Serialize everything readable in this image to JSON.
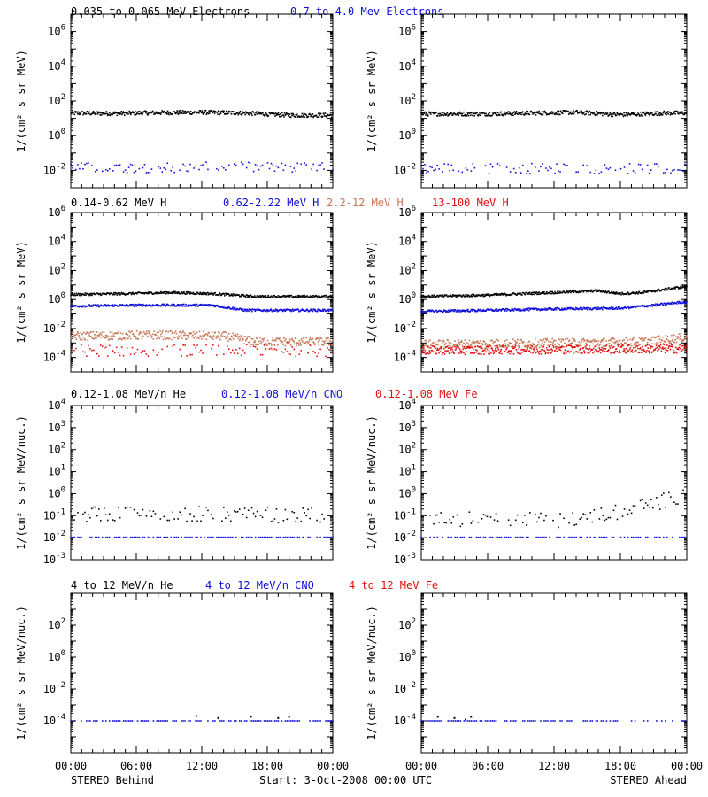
{
  "colors": {
    "black": "#000000",
    "blue": "#1010d8",
    "salmon": "#c87858",
    "red": "#e01010"
  },
  "rows": [
    {
      "legend": [
        {
          "text": "0.035 to 0.065 MeV Electrons",
          "color": "#000000"
        },
        {
          "text": "0.7 to 4.0 Mev Electrons",
          "color": "#1010d8"
        }
      ]
    },
    {
      "legend": [
        {
          "text": "0.14-0.62 MeV H",
          "color": "#000000"
        },
        {
          "text": "0.62-2.22 MeV H",
          "color": "#1010d8"
        },
        {
          "text": "2.2-12 MeV H",
          "color": "#c87858"
        },
        {
          "text": "13-100 MeV H",
          "color": "#e01010"
        }
      ]
    },
    {
      "legend": [
        {
          "text": "0.12-1.08 MeV/n He",
          "color": "#000000"
        },
        {
          "text": "0.12-1.08 MeV/n CNO",
          "color": "#1010d8"
        },
        {
          "text": "0.12-1.08 MeV Fe",
          "color": "#e01010"
        }
      ]
    },
    {
      "legend": [
        {
          "text": "4 to 12 MeV/n He",
          "color": "#000000"
        },
        {
          "text": "4 to 12 MeV/n CNO",
          "color": "#1010d8"
        },
        {
          "text": "4 to 12 MeV Fe",
          "color": "#e01010"
        }
      ]
    }
  ],
  "footer": {
    "left": "STEREO Behind",
    "center": "Start:  3-Oct-2008 00:00 UTC",
    "right": "STEREO Ahead"
  },
  "chart_data": [
    {
      "type": "scatter",
      "panel": "electrons-behind",
      "ylabel": "1/(cm² s sr MeV)",
      "log_y": true,
      "ylim_exp": [
        -3,
        7
      ],
      "yticks": [
        -2,
        0,
        2,
        4,
        6
      ],
      "xticks": [
        "00:00",
        "06:00",
        "12:00",
        "18:00",
        "00:00"
      ],
      "series": [
        {
          "color": "#000000",
          "kind": "dense",
          "points": [
            [
              0,
              20
            ],
            [
              4,
              19
            ],
            [
              8,
              21
            ],
            [
              12,
              22
            ],
            [
              16,
              20
            ],
            [
              20,
              15
            ],
            [
              24,
              15
            ]
          ],
          "scatter": 0.12
        },
        {
          "color": "#1010d8",
          "kind": "sparse",
          "points": [
            [
              0,
              0.014
            ],
            [
              12,
              0.015
            ],
            [
              24,
              0.014
            ]
          ],
          "scatter": 0.3
        }
      ]
    },
    {
      "type": "scatter",
      "panel": "electrons-ahead",
      "ylabel": "1/(cm² s sr MeV)",
      "log_y": true,
      "ylim_exp": [
        -3,
        7
      ],
      "yticks": [
        -2,
        0,
        2,
        4,
        6
      ],
      "xticks": [
        "00:00",
        "06:00",
        "12:00",
        "18:00",
        "00:00"
      ],
      "series": [
        {
          "color": "#000000",
          "kind": "dense",
          "points": [
            [
              0,
              18
            ],
            [
              6,
              18
            ],
            [
              10,
              20
            ],
            [
              14,
              22
            ],
            [
              18,
              16
            ],
            [
              22,
              20
            ],
            [
              24,
              20
            ]
          ],
          "scatter": 0.12
        },
        {
          "color": "#1010d8",
          "kind": "sparse",
          "points": [
            [
              0,
              0.013
            ],
            [
              12,
              0.013
            ],
            [
              24,
              0.012
            ]
          ],
          "scatter": 0.3
        }
      ]
    },
    {
      "type": "scatter",
      "panel": "protons-behind",
      "ylabel": "1/(cm² s sr MeV)",
      "log_y": true,
      "ylim_exp": [
        -5,
        6
      ],
      "yticks": [
        -4,
        -2,
        0,
        2,
        4,
        6
      ],
      "xticks": [
        "00:00",
        "06:00",
        "12:00",
        "18:00",
        "00:00"
      ],
      "series": [
        {
          "color": "#000000",
          "kind": "dense",
          "points": [
            [
              0,
              2.2
            ],
            [
              5,
              2.5
            ],
            [
              9,
              3
            ],
            [
              13,
              2.5
            ],
            [
              17,
              1.6
            ],
            [
              24,
              1.6
            ]
          ],
          "scatter": 0.08
        },
        {
          "color": "#1010d8",
          "kind": "dense",
          "points": [
            [
              0,
              0.35
            ],
            [
              6,
              0.4
            ],
            [
              13,
              0.4
            ],
            [
              16,
              0.18
            ],
            [
              24,
              0.18
            ]
          ],
          "scatter": 0.08
        },
        {
          "color": "#c87858",
          "kind": "dense",
          "points": [
            [
              0,
              0.003
            ],
            [
              8,
              0.0035
            ],
            [
              14,
              0.003
            ],
            [
              17,
              0.0012
            ],
            [
              24,
              0.0012
            ]
          ],
          "scatter": 0.3
        },
        {
          "color": "#e01010",
          "kind": "sparse",
          "points": [
            [
              0,
              0.0003
            ],
            [
              12,
              0.0003
            ],
            [
              24,
              0.0003
            ]
          ],
          "scatter": 0.4
        }
      ]
    },
    {
      "type": "scatter",
      "panel": "protons-ahead",
      "ylabel": "1/(cm² s sr MeV)",
      "log_y": true,
      "ylim_exp": [
        -5,
        6
      ],
      "yticks": [
        -4,
        -2,
        0,
        2,
        4,
        6
      ],
      "xticks": [
        "00:00",
        "06:00",
        "12:00",
        "18:00",
        "00:00"
      ],
      "series": [
        {
          "color": "#000000",
          "kind": "dense",
          "points": [
            [
              0,
              1.6
            ],
            [
              6,
              2
            ],
            [
              12,
              3
            ],
            [
              16,
              4
            ],
            [
              18,
              2.5
            ],
            [
              20,
              3
            ],
            [
              24,
              8
            ]
          ],
          "scatter": 0.08
        },
        {
          "color": "#1010d8",
          "kind": "dense",
          "points": [
            [
              0,
              0.15
            ],
            [
              6,
              0.18
            ],
            [
              12,
              0.22
            ],
            [
              18,
              0.25
            ],
            [
              21,
              0.4
            ],
            [
              24,
              0.7
            ]
          ],
          "scatter": 0.08
        },
        {
          "color": "#c87858",
          "kind": "dense",
          "points": [
            [
              0,
              0.0008
            ],
            [
              12,
              0.001
            ],
            [
              20,
              0.0012
            ],
            [
              24,
              0.0025
            ]
          ],
          "scatter": 0.3
        },
        {
          "color": "#e01010",
          "kind": "dense",
          "points": [
            [
              0,
              0.0003
            ],
            [
              12,
              0.00035
            ],
            [
              24,
              0.0004
            ]
          ],
          "scatter": 0.3
        }
      ]
    },
    {
      "type": "scatter",
      "panel": "heavy-ions-low-behind",
      "ylabel": "1/(cm² s sr MeV/nuc.)",
      "log_y": true,
      "ylim_exp": [
        -3,
        4
      ],
      "yticks": [
        -3,
        -2,
        -1,
        0,
        1,
        2,
        3,
        4
      ],
      "xticks": [
        "00:00",
        "06:00",
        "12:00",
        "18:00",
        "00:00"
      ],
      "series": [
        {
          "color": "#000000",
          "kind": "sparse",
          "points": [
            [
              0,
              0.12
            ],
            [
              12,
              0.12
            ],
            [
              24,
              0.1
            ]
          ],
          "scatter": 0.35
        },
        {
          "color": "#1010d8",
          "kind": "sparse",
          "points": [
            [
              0,
              0.0105
            ],
            [
              24,
              0.0105
            ]
          ],
          "scatter": 0.0
        }
      ]
    },
    {
      "type": "scatter",
      "panel": "heavy-ions-low-ahead",
      "ylabel": "1/(cm² s sr MeV/nuc.)",
      "log_y": true,
      "ylim_exp": [
        -3,
        4
      ],
      "yticks": [
        -3,
        -2,
        -1,
        0,
        1,
        2,
        3,
        4
      ],
      "xticks": [
        "00:00",
        "06:00",
        "12:00",
        "18:00",
        "00:00"
      ],
      "series": [
        {
          "color": "#000000",
          "kind": "sparse",
          "points": [
            [
              0,
              0.07
            ],
            [
              12,
              0.06
            ],
            [
              18,
              0.15
            ],
            [
              21,
              0.35
            ],
            [
              24,
              1.0
            ]
          ],
          "scatter": 0.35
        },
        {
          "color": "#1010d8",
          "kind": "sparse",
          "points": [
            [
              0,
              0.0105
            ],
            [
              24,
              0.0105
            ]
          ],
          "scatter": 0.0
        }
      ]
    },
    {
      "type": "scatter",
      "panel": "heavy-ions-high-behind",
      "ylabel": "1/(cm² s sr MeV/nuc.)",
      "log_y": true,
      "ylim_exp": [
        -6,
        4
      ],
      "yticks": [
        -4,
        -2,
        0,
        2
      ],
      "xticks": [
        "00:00",
        "06:00",
        "12:00",
        "18:00",
        "00:00"
      ],
      "series": [
        {
          "color": "#000000",
          "kind": "few",
          "points": [
            [
              11.5,
              0.0002
            ],
            [
              13.5,
              0.00015
            ],
            [
              16.5,
              0.00018
            ],
            [
              19,
              0.00015
            ],
            [
              20,
              0.00018
            ]
          ],
          "scatter": 0.0
        },
        {
          "color": "#1010d8",
          "kind": "sparse",
          "points": [
            [
              0,
              0.0001
            ],
            [
              24,
              0.0001
            ]
          ],
          "scatter": 0.0
        }
      ]
    },
    {
      "type": "scatter",
      "panel": "heavy-ions-high-ahead",
      "ylabel": "1/(cm² s sr MeV/nuc.)",
      "log_y": true,
      "ylim_exp": [
        -6,
        4
      ],
      "yticks": [
        -4,
        -2,
        0,
        2
      ],
      "xticks": [
        "00:00",
        "06:00",
        "12:00",
        "18:00",
        "00:00"
      ],
      "series": [
        {
          "color": "#000000",
          "kind": "few",
          "points": [
            [
              1.5,
              0.00018
            ],
            [
              3,
              0.00015
            ],
            [
              4,
              0.00012
            ],
            [
              4.5,
              0.00018
            ]
          ],
          "scatter": 0.0
        },
        {
          "color": "#1010d8",
          "kind": "sparse",
          "points": [
            [
              0,
              0.0001
            ],
            [
              24,
              0.0001
            ]
          ],
          "scatter": 0.0
        }
      ]
    }
  ]
}
